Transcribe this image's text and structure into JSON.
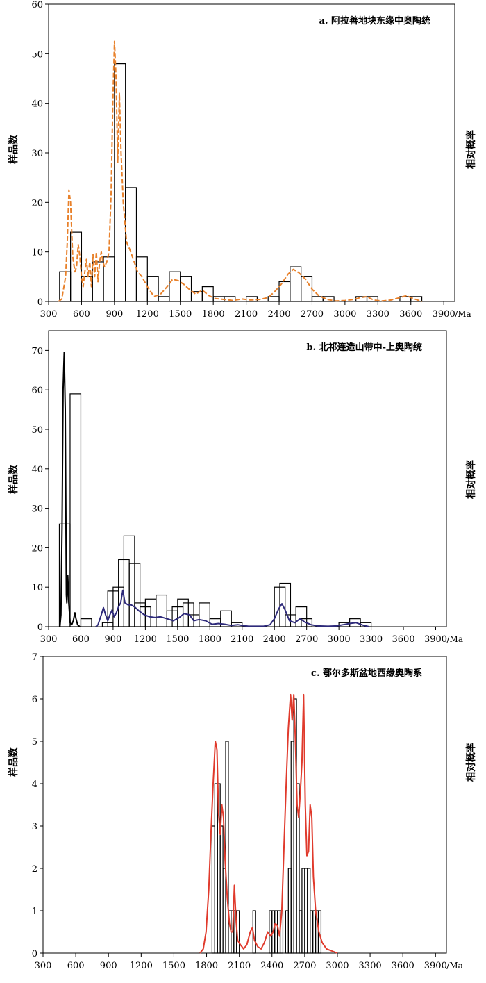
{
  "chart_data": [
    {
      "id": "a",
      "type": "bar",
      "title": "a. 阿拉善地块东缘中奥陶统",
      "ylabel": "样品数",
      "y2label": "相对概率",
      "xlabel": "/Ma",
      "xlim": [
        300,
        4000
      ],
      "ylim": [
        0,
        60
      ],
      "xticks": [
        300,
        600,
        900,
        1200,
        1500,
        1800,
        2100,
        2400,
        2700,
        3000,
        3300,
        3600,
        3900
      ],
      "yticks": [
        0,
        10,
        20,
        30,
        40,
        50,
        60
      ],
      "bin_width": 100,
      "bar_color": "#000000",
      "curve_color": "#e8812b",
      "curve_style": "dashed",
      "bars": [
        [
          400,
          6
        ],
        [
          500,
          14
        ],
        [
          600,
          5
        ],
        [
          700,
          8
        ],
        [
          800,
          9
        ],
        [
          900,
          48
        ],
        [
          1000,
          23
        ],
        [
          1100,
          9
        ],
        [
          1200,
          5
        ],
        [
          1300,
          1
        ],
        [
          1400,
          6
        ],
        [
          1500,
          5
        ],
        [
          1600,
          2
        ],
        [
          1700,
          3
        ],
        [
          1800,
          1
        ],
        [
          1900,
          1
        ],
        [
          2100,
          1
        ],
        [
          2300,
          1
        ],
        [
          2400,
          4
        ],
        [
          2500,
          7
        ],
        [
          2600,
          5
        ],
        [
          2700,
          1
        ],
        [
          2800,
          1
        ],
        [
          3100,
          1
        ],
        [
          3200,
          1
        ],
        [
          3500,
          1
        ],
        [
          3600,
          1
        ]
      ],
      "curve": [
        [
          390,
          0
        ],
        [
          420,
          0.5
        ],
        [
          440,
          3
        ],
        [
          455,
          5
        ],
        [
          470,
          12
        ],
        [
          485,
          22.5
        ],
        [
          500,
          20
        ],
        [
          520,
          9
        ],
        [
          540,
          6
        ],
        [
          555,
          7
        ],
        [
          570,
          11.5
        ],
        [
          585,
          9
        ],
        [
          600,
          5
        ],
        [
          615,
          3
        ],
        [
          630,
          6
        ],
        [
          645,
          8.5
        ],
        [
          660,
          5
        ],
        [
          675,
          8
        ],
        [
          690,
          3
        ],
        [
          705,
          9.5
        ],
        [
          720,
          5
        ],
        [
          735,
          10
        ],
        [
          750,
          4
        ],
        [
          765,
          8
        ],
        [
          780,
          10
        ],
        [
          795,
          8
        ],
        [
          810,
          7
        ],
        [
          830,
          8
        ],
        [
          850,
          10
        ],
        [
          870,
          22
        ],
        [
          885,
          40
        ],
        [
          900,
          52.5
        ],
        [
          915,
          45
        ],
        [
          930,
          28
        ],
        [
          945,
          42
        ],
        [
          960,
          30
        ],
        [
          980,
          20
        ],
        [
          1010,
          12
        ],
        [
          1040,
          10.5
        ],
        [
          1080,
          8
        ],
        [
          1110,
          6
        ],
        [
          1150,
          5
        ],
        [
          1200,
          3
        ],
        [
          1260,
          1
        ],
        [
          1320,
          1.5
        ],
        [
          1380,
          3
        ],
        [
          1430,
          4.5
        ],
        [
          1480,
          4.2
        ],
        [
          1530,
          3.5
        ],
        [
          1580,
          2.5
        ],
        [
          1640,
          1.5
        ],
        [
          1700,
          2.3
        ],
        [
          1760,
          1.2
        ],
        [
          1820,
          0.6
        ],
        [
          1900,
          0.4
        ],
        [
          1980,
          0.2
        ],
        [
          2060,
          0.5
        ],
        [
          2140,
          0.3
        ],
        [
          2220,
          0.4
        ],
        [
          2300,
          0.8
        ],
        [
          2360,
          2
        ],
        [
          2420,
          3.5
        ],
        [
          2480,
          5.5
        ],
        [
          2530,
          6.5
        ],
        [
          2580,
          5.8
        ],
        [
          2640,
          4.5
        ],
        [
          2700,
          2.5
        ],
        [
          2760,
          1.2
        ],
        [
          2840,
          0.4
        ],
        [
          2920,
          0.1
        ],
        [
          3000,
          0.2
        ],
        [
          3080,
          0.4
        ],
        [
          3140,
          0.8
        ],
        [
          3200,
          1
        ],
        [
          3260,
          0.3
        ],
        [
          3340,
          0.1
        ],
        [
          3420,
          0.3
        ],
        [
          3500,
          0.8
        ],
        [
          3560,
          1.2
        ],
        [
          3620,
          0.6
        ],
        [
          3700,
          0
        ]
      ]
    },
    {
      "id": "b",
      "type": "bar",
      "title": "b. 北祁连造山带中-上奥陶统",
      "ylabel": "样品数",
      "y2label": "相对概率",
      "xlabel": "/Ma",
      "xlim": [
        300,
        4000
      ],
      "ylim": [
        0,
        75
      ],
      "xticks": [
        300,
        600,
        900,
        1200,
        1500,
        1800,
        2100,
        2400,
        2700,
        3000,
        3300,
        3600,
        3900
      ],
      "yticks": [
        0,
        10,
        20,
        30,
        40,
        50,
        60,
        70
      ],
      "bin_width": 100,
      "bar_color": "#000000",
      "curve_color": "#2e2a7a",
      "curve2_color": "#000000",
      "bars": [
        [
          400,
          26
        ],
        [
          500,
          59
        ],
        [
          600,
          2
        ],
        [
          800,
          1
        ],
        [
          850,
          9
        ],
        [
          900,
          10
        ],
        [
          950,
          17
        ],
        [
          1000,
          23
        ],
        [
          1050,
          16
        ],
        [
          1100,
          6
        ],
        [
          1150,
          5
        ],
        [
          1200,
          7
        ],
        [
          1300,
          8
        ],
        [
          1400,
          4
        ],
        [
          1450,
          5
        ],
        [
          1500,
          7
        ],
        [
          1550,
          6
        ],
        [
          1600,
          3
        ],
        [
          1700,
          6
        ],
        [
          1800,
          2
        ],
        [
          1900,
          4
        ],
        [
          2000,
          1
        ],
        [
          2400,
          10
        ],
        [
          2450,
          11
        ],
        [
          2500,
          3
        ],
        [
          2600,
          5
        ],
        [
          2650,
          2
        ],
        [
          3000,
          1
        ],
        [
          3100,
          2
        ],
        [
          3200,
          1
        ]
      ],
      "curve": [
        [
          740,
          0
        ],
        [
          760,
          0.5
        ],
        [
          790,
          3
        ],
        [
          810,
          4.8
        ],
        [
          830,
          3
        ],
        [
          850,
          1.5
        ],
        [
          870,
          3
        ],
        [
          890,
          4.2
        ],
        [
          910,
          2.5
        ],
        [
          930,
          3.5
        ],
        [
          950,
          5
        ],
        [
          970,
          6
        ],
        [
          990,
          9.2
        ],
        [
          1010,
          6
        ],
        [
          1040,
          5.5
        ],
        [
          1070,
          5.5
        ],
        [
          1100,
          5
        ],
        [
          1140,
          4
        ],
        [
          1190,
          3
        ],
        [
          1240,
          2.5
        ],
        [
          1290,
          2.3
        ],
        [
          1340,
          2.5
        ],
        [
          1400,
          2
        ],
        [
          1460,
          1.5
        ],
        [
          1510,
          2.2
        ],
        [
          1560,
          3.3
        ],
        [
          1610,
          3
        ],
        [
          1650,
          1.5
        ],
        [
          1700,
          1.8
        ],
        [
          1760,
          1.5
        ],
        [
          1820,
          0.6
        ],
        [
          1880,
          0.8
        ],
        [
          1940,
          0.6
        ],
        [
          2000,
          0.3
        ],
        [
          2060,
          0.5
        ],
        [
          2100,
          0.3
        ],
        [
          2160,
          0.1
        ],
        [
          2300,
          0.1
        ],
        [
          2360,
          0.5
        ],
        [
          2400,
          2
        ],
        [
          2440,
          4.5
        ],
        [
          2470,
          5.8
        ],
        [
          2500,
          4.2
        ],
        [
          2540,
          1.5
        ],
        [
          2590,
          1
        ],
        [
          2640,
          2
        ],
        [
          2680,
          1.2
        ],
        [
          2740,
          0.5
        ],
        [
          2800,
          0.2
        ],
        [
          2900,
          0.1
        ],
        [
          2980,
          0.2
        ],
        [
          3040,
          0.5
        ],
        [
          3100,
          0.8
        ],
        [
          3160,
          1
        ],
        [
          3220,
          0.4
        ],
        [
          3280,
          0
        ]
      ],
      "curve2": [
        [
          405,
          0
        ],
        [
          415,
          3
        ],
        [
          425,
          25
        ],
        [
          435,
          60
        ],
        [
          445,
          69.5
        ],
        [
          455,
          55
        ],
        [
          465,
          8
        ],
        [
          470,
          6
        ],
        [
          478,
          13
        ],
        [
          488,
          6
        ],
        [
          500,
          1
        ],
        [
          515,
          0.5
        ],
        [
          530,
          1.5
        ],
        [
          545,
          3.5
        ],
        [
          555,
          2
        ],
        [
          570,
          0.5
        ],
        [
          590,
          0
        ]
      ]
    },
    {
      "id": "c",
      "type": "bar",
      "title": "c. 鄂尔多斯盆地西缘奥陶系",
      "ylabel": "样品数",
      "y2label": "相对概率",
      "xlabel": "/Ma",
      "xlim": [
        300,
        4000
      ],
      "ylim": [
        0,
        7
      ],
      "xticks": [
        300,
        600,
        900,
        1200,
        1500,
        1800,
        2100,
        2400,
        2700,
        3000,
        3300,
        3600,
        3900
      ],
      "yticks": [
        0,
        1,
        2,
        3,
        4,
        5,
        6,
        7
      ],
      "bin_width": 25,
      "bar_color": "#000000",
      "curve_color": "#e03a2c",
      "bars": [
        [
          1850,
          3
        ],
        [
          1875,
          4
        ],
        [
          1900,
          4
        ],
        [
          1925,
          3
        ],
        [
          1950,
          2
        ],
        [
          1975,
          5
        ],
        [
          2000,
          1
        ],
        [
          2025,
          1
        ],
        [
          2050,
          1
        ],
        [
          2075,
          1
        ],
        [
          2225,
          1
        ],
        [
          2375,
          1
        ],
        [
          2400,
          1
        ],
        [
          2425,
          1
        ],
        [
          2450,
          1
        ],
        [
          2475,
          1
        ],
        [
          2525,
          1
        ],
        [
          2550,
          2
        ],
        [
          2575,
          5
        ],
        [
          2600,
          6
        ],
        [
          2625,
          4
        ],
        [
          2650,
          1
        ],
        [
          2675,
          2
        ],
        [
          2700,
          2
        ],
        [
          2725,
          2
        ],
        [
          2750,
          1
        ],
        [
          2775,
          1
        ],
        [
          2800,
          1
        ],
        [
          2825,
          1
        ]
      ],
      "curve": [
        [
          1740,
          0
        ],
        [
          1770,
          0.1
        ],
        [
          1795,
          0.5
        ],
        [
          1820,
          1.5
        ],
        [
          1840,
          2.8
        ],
        [
          1860,
          4
        ],
        [
          1880,
          5
        ],
        [
          1895,
          4.8
        ],
        [
          1910,
          3.3
        ],
        [
          1925,
          2.8
        ],
        [
          1940,
          3.5
        ],
        [
          1955,
          3.2
        ],
        [
          1970,
          2.2
        ],
        [
          1990,
          1.3
        ],
        [
          2010,
          0.7
        ],
        [
          2025,
          0.5
        ],
        [
          2040,
          0.5
        ],
        [
          2055,
          1.6
        ],
        [
          2070,
          0.8
        ],
        [
          2085,
          0.3
        ],
        [
          2110,
          0.2
        ],
        [
          2140,
          0.1
        ],
        [
          2170,
          0.2
        ],
        [
          2200,
          0.5
        ],
        [
          2220,
          0.6
        ],
        [
          2240,
          0.3
        ],
        [
          2270,
          0.15
        ],
        [
          2300,
          0.1
        ],
        [
          2330,
          0.25
        ],
        [
          2360,
          0.5
        ],
        [
          2390,
          0.4
        ],
        [
          2410,
          0.5
        ],
        [
          2430,
          0.7
        ],
        [
          2450,
          0.65
        ],
        [
          2470,
          0.4
        ],
        [
          2490,
          1
        ],
        [
          2510,
          2.5
        ],
        [
          2530,
          4
        ],
        [
          2550,
          5.3
        ],
        [
          2570,
          6.1
        ],
        [
          2585,
          5.5
        ],
        [
          2600,
          6.1
        ],
        [
          2615,
          5
        ],
        [
          2630,
          3.5
        ],
        [
          2645,
          3.2
        ],
        [
          2660,
          3.8
        ],
        [
          2675,
          4.5
        ],
        [
          2690,
          6.1
        ],
        [
          2705,
          3.5
        ],
        [
          2720,
          2.3
        ],
        [
          2735,
          2.4
        ],
        [
          2750,
          3.5
        ],
        [
          2765,
          3.2
        ],
        [
          2780,
          1.8
        ],
        [
          2800,
          1
        ],
        [
          2830,
          0.5
        ],
        [
          2860,
          0.25
        ],
        [
          2900,
          0.1
        ],
        [
          2950,
          0.05
        ],
        [
          3000,
          0
        ]
      ]
    }
  ]
}
